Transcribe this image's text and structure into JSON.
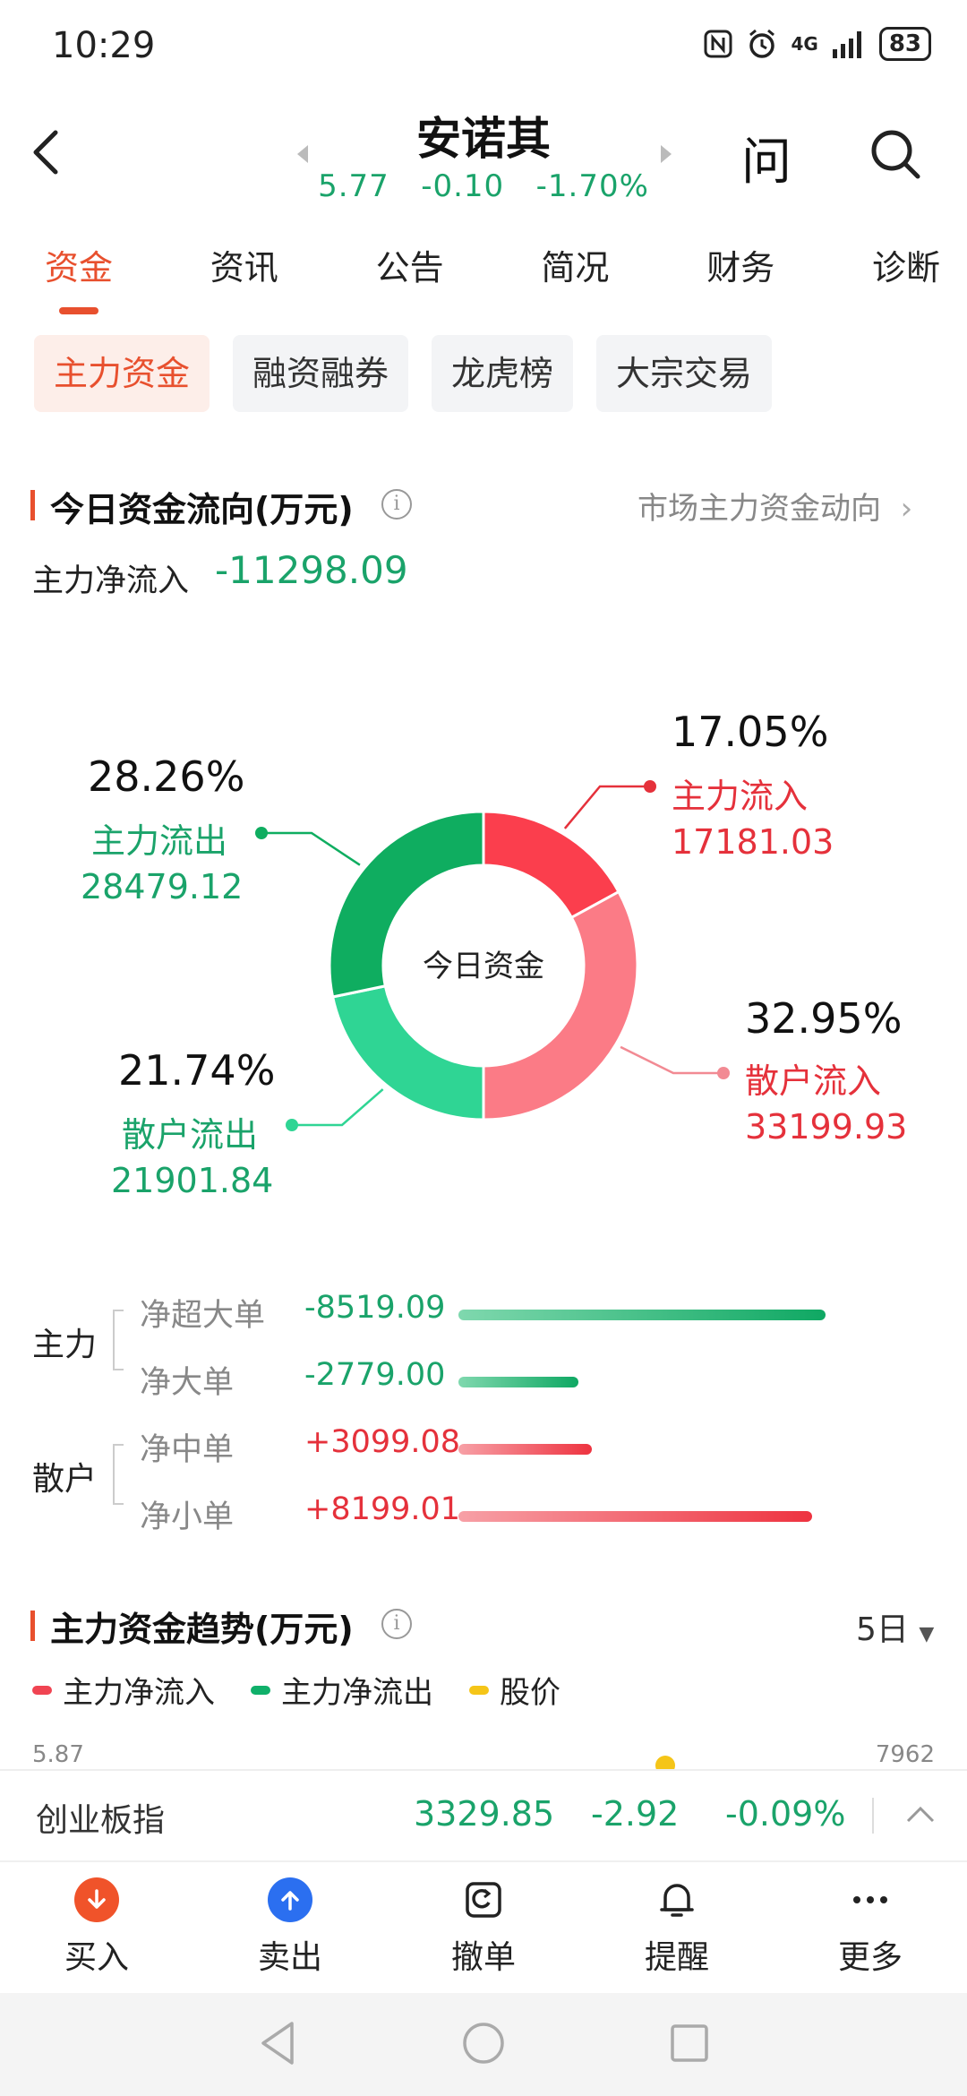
{
  "status": {
    "time": "10:29",
    "network": "4G",
    "battery": "83"
  },
  "header": {
    "title": "安诺其",
    "price": "5.77",
    "change": "-0.10",
    "change_pct": "-1.70%",
    "ask_label": "问"
  },
  "tabs": [
    {
      "label": "资金",
      "active": true
    },
    {
      "label": "资讯"
    },
    {
      "label": "公告"
    },
    {
      "label": "简况"
    },
    {
      "label": "财务"
    },
    {
      "label": "诊断"
    }
  ],
  "subtabs": [
    {
      "label": "主力资金",
      "active": true
    },
    {
      "label": "融资融券"
    },
    {
      "label": "龙虎榜"
    },
    {
      "label": "大宗交易"
    }
  ],
  "today_flow": {
    "title": "今日资金流向(万元)",
    "link": "市场主力资金动向",
    "net_label": "主力净流入",
    "net_value": "-11298.09",
    "center_label": "今日资金"
  },
  "chart_data": {
    "type": "pie",
    "title": "今日资金",
    "slices": [
      {
        "name": "主力流入",
        "pct": 17.05,
        "value": 17181.03,
        "pct_text": "17.05%",
        "value_text": "17181.03",
        "color": "#fb3e4d"
      },
      {
        "name": "散户流入",
        "pct": 32.95,
        "value": 33199.93,
        "pct_text": "32.95%",
        "value_text": "33199.93",
        "color": "#fb7b86"
      },
      {
        "name": "散户流出",
        "pct": 21.74,
        "value": 21901.84,
        "pct_text": "21.74%",
        "value_text": "21901.84",
        "color": "#2fd594"
      },
      {
        "name": "主力流出",
        "pct": 28.26,
        "value": 28479.12,
        "pct_text": "28.26%",
        "value_text": "28479.12",
        "color": "#0fad60"
      }
    ]
  },
  "flow_rows": {
    "main_label": "主力",
    "retail_label": "散户",
    "rows": [
      {
        "label": "净超大单",
        "value": "-8519.09",
        "num": -8519.09
      },
      {
        "label": "净大单",
        "value": "-2779.00",
        "num": -2779.0
      },
      {
        "label": "净中单",
        "value": "+3099.08",
        "num": 3099.08
      },
      {
        "label": "净小单",
        "value": "+8199.01",
        "num": 8199.01
      }
    ]
  },
  "trend": {
    "title": "主力资金趋势(万元)",
    "period": "5日",
    "legend": [
      {
        "label": "主力净流入",
        "color": "#f04452"
      },
      {
        "label": "主力净流出",
        "color": "#10b06a"
      },
      {
        "label": "股价",
        "color": "#f5c518"
      }
    ],
    "axis_left_top": "5.87",
    "axis_right_top": "7962"
  },
  "index_bar": {
    "name": "创业板指",
    "value": "3329.85",
    "change": "-2.92",
    "change_pct": "-0.09%"
  },
  "actions": [
    {
      "label": "买入",
      "icon": "buy-arrow-down-icon"
    },
    {
      "label": "卖出",
      "icon": "sell-arrow-up-icon"
    },
    {
      "label": "撤单",
      "icon": "cancel-order-icon"
    },
    {
      "label": "提醒",
      "icon": "bell-icon"
    },
    {
      "label": "更多",
      "icon": "more-dots-icon"
    }
  ]
}
